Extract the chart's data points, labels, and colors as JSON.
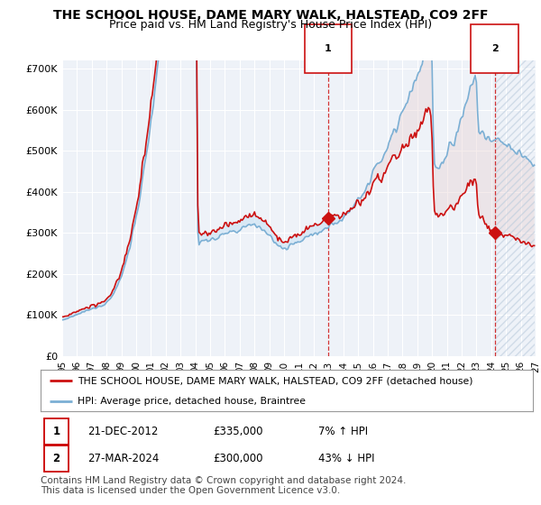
{
  "title": "THE SCHOOL HOUSE, DAME MARY WALK, HALSTEAD, CO9 2FF",
  "subtitle": "Price paid vs. HM Land Registry's House Price Index (HPI)",
  "hpi_label": "HPI: Average price, detached house, Braintree",
  "property_label": "THE SCHOOL HOUSE, DAME MARY WALK, HALSTEAD, CO9 2FF (detached house)",
  "transaction1": {
    "label": "1",
    "date": "21-DEC-2012",
    "price": 335000,
    "hpi_diff": "7% ↑ HPI",
    "year": 2012.97
  },
  "transaction2": {
    "label": "2",
    "date": "27-MAR-2024",
    "price": 300000,
    "hpi_diff": "43% ↓ HPI",
    "year": 2024.23
  },
  "hpi_color": "#7bafd4",
  "property_color": "#cc1111",
  "marker_color": "#cc1111",
  "vline_color": "#cc1111",
  "background_color": "#ffffff",
  "plot_bg_color": "#eef2f8",
  "grid_color": "#ffffff",
  "fill_color": "#d0e4f5",
  "ylim": [
    0,
    720000
  ],
  "xlim_start": 1995.0,
  "xlim_end": 2027.0,
  "yticks": [
    0,
    100000,
    200000,
    300000,
    400000,
    500000,
    600000,
    700000
  ],
  "ytick_labels": [
    "£0",
    "£100K",
    "£200K",
    "£300K",
    "£400K",
    "£500K",
    "£600K",
    "£700K"
  ],
  "copyright_text": "Contains HM Land Registry data © Crown copyright and database right 2024.\nThis data is licensed under the Open Government Licence v3.0.",
  "footnote_fontsize": 7.5,
  "title_fontsize": 10,
  "subtitle_fontsize": 9,
  "tick_fontsize": 7.5,
  "ytick_fontsize": 8
}
